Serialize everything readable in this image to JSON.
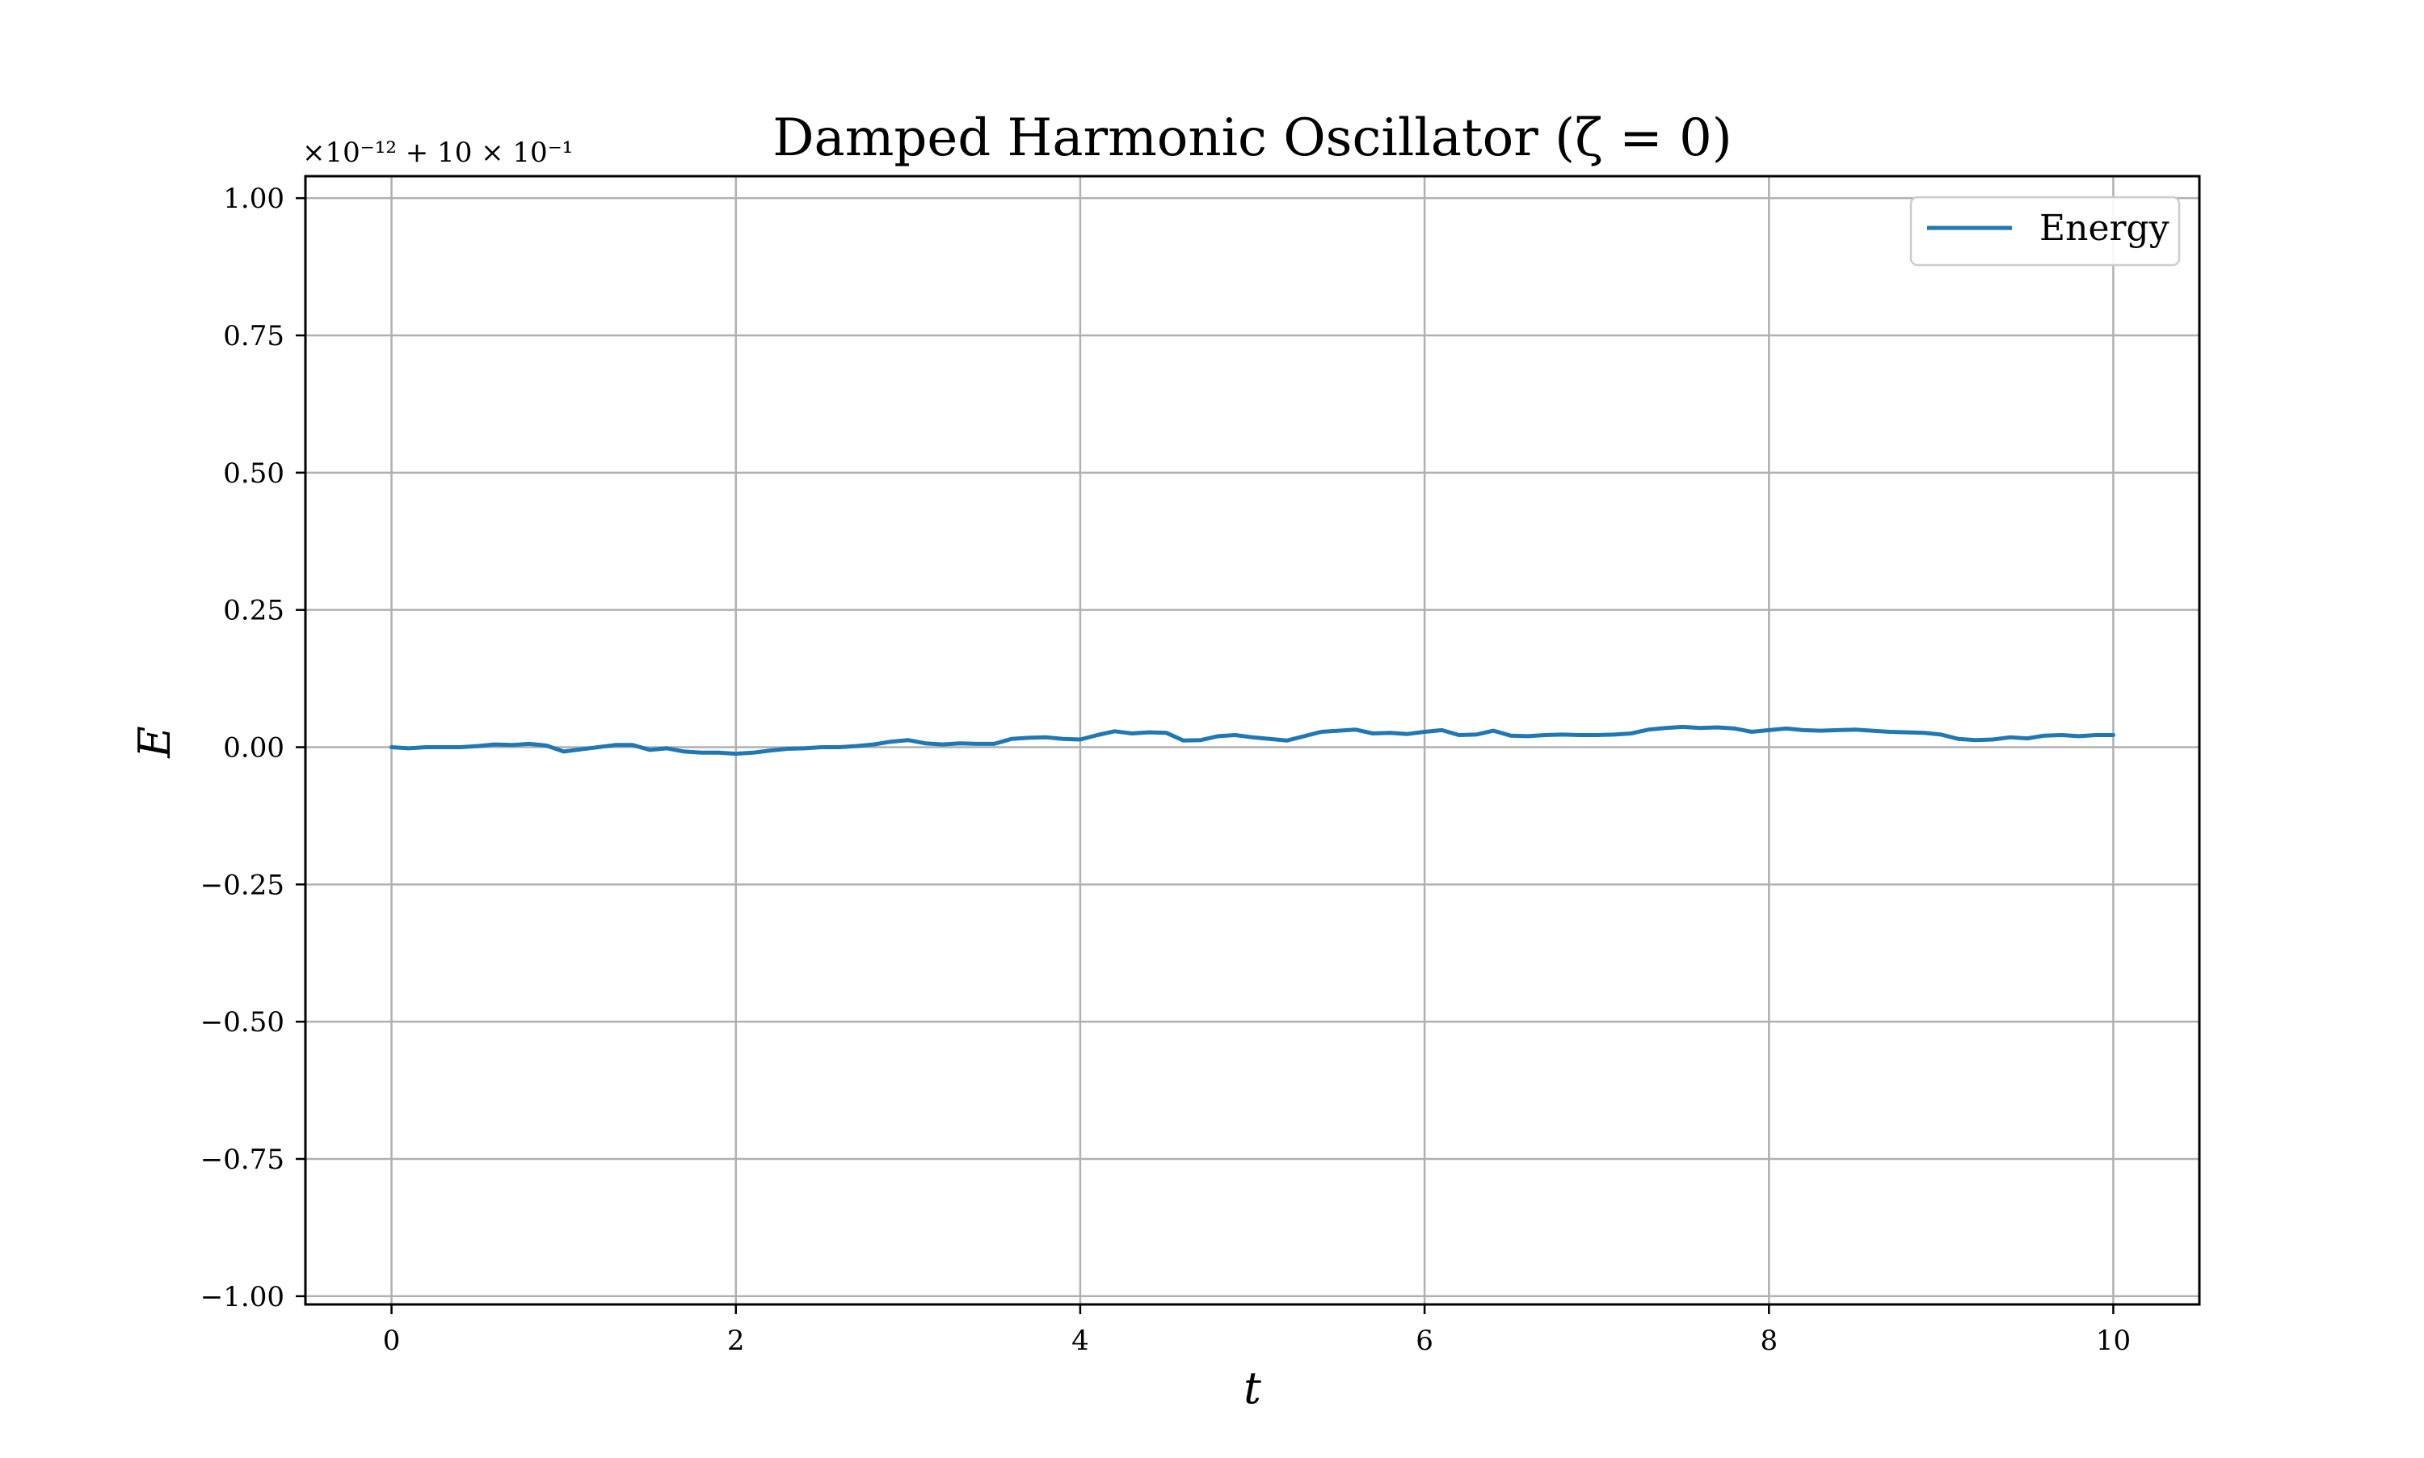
{
  "chart_data": {
    "type": "line",
    "title": "Damped Harmonic Oscillator (ζ = 0)",
    "xlabel": "t",
    "ylabel": "E",
    "offset_text": "×10⁻¹² + 10 × 10⁻¹",
    "xlim": [
      -0.5,
      10.5
    ],
    "ylim": [
      -1.015,
      1.04
    ],
    "x_ticks": [
      0,
      2,
      4,
      6,
      8,
      10
    ],
    "x_tick_labels": [
      "0",
      "2",
      "4",
      "6",
      "8",
      "10"
    ],
    "y_ticks": [
      1.0,
      0.75,
      0.5,
      0.25,
      0.0,
      -0.25,
      -0.5,
      -0.75,
      -1.0
    ],
    "y_tick_labels": [
      "1.00",
      "0.75",
      "0.50",
      "0.25",
      "0.00",
      "−0.25",
      "−0.50",
      "−0.75",
      "−1.00"
    ],
    "grid": true,
    "legend_position": "upper right",
    "series": [
      {
        "name": "Energy",
        "color": "#1f77b4",
        "x": [
          0,
          0.1,
          0.2,
          0.3,
          0.4,
          0.5,
          0.6,
          0.7,
          0.8,
          0.9,
          1.0,
          1.1,
          1.2,
          1.3,
          1.4,
          1.5,
          1.6,
          1.7,
          1.8,
          1.9,
          2.0,
          2.1,
          2.2,
          2.3,
          2.4,
          2.5,
          2.6,
          2.7,
          2.8,
          2.9,
          3.0,
          3.1,
          3.2,
          3.3,
          3.4,
          3.5,
          3.6,
          3.7,
          3.8,
          3.9,
          4.0,
          4.1,
          4.2,
          4.3,
          4.4,
          4.5,
          4.6,
          4.7,
          4.8,
          4.9,
          5.0,
          5.1,
          5.2,
          5.3,
          5.4,
          5.5,
          5.6,
          5.7,
          5.8,
          5.9,
          6.0,
          6.1,
          6.2,
          6.3,
          6.4,
          6.5,
          6.6,
          6.7,
          6.8,
          6.9,
          7.0,
          7.1,
          7.2,
          7.3,
          7.4,
          7.5,
          7.6,
          7.7,
          7.8,
          7.9,
          8.0,
          8.1,
          8.2,
          8.3,
          8.4,
          8.5,
          8.6,
          8.7,
          8.8,
          8.9,
          9.0,
          9.1,
          9.2,
          9.3,
          9.4,
          9.5,
          9.6,
          9.7,
          9.8,
          9.9,
          10.0
        ],
        "y": [
          0.0,
          -0.002,
          0.0,
          0.0,
          0.0,
          0.002,
          0.005,
          0.004,
          0.006,
          0.003,
          -0.008,
          -0.004,
          0.0,
          0.004,
          0.004,
          -0.005,
          -0.002,
          -0.008,
          -0.01,
          -0.01,
          -0.012,
          -0.01,
          -0.006,
          -0.003,
          -0.002,
          0.0,
          0.0,
          0.002,
          0.005,
          0.01,
          0.013,
          0.007,
          0.005,
          0.007,
          0.006,
          0.006,
          0.015,
          0.017,
          0.018,
          0.015,
          0.014,
          0.022,
          0.029,
          0.025,
          0.027,
          0.026,
          0.012,
          0.013,
          0.02,
          0.022,
          0.018,
          0.015,
          0.012,
          0.02,
          0.028,
          0.03,
          0.032,
          0.025,
          0.026,
          0.024,
          0.028,
          0.031,
          0.022,
          0.023,
          0.03,
          0.021,
          0.02,
          0.022,
          0.023,
          0.022,
          0.022,
          0.023,
          0.025,
          0.032,
          0.035,
          0.037,
          0.035,
          0.036,
          0.034,
          0.028,
          0.031,
          0.034,
          0.031,
          0.03,
          0.031,
          0.032,
          0.03,
          0.028,
          0.027,
          0.026,
          0.023,
          0.015,
          0.013,
          0.014,
          0.018,
          0.016,
          0.021,
          0.022,
          0.02,
          0.022,
          0.022
        ]
      }
    ]
  }
}
